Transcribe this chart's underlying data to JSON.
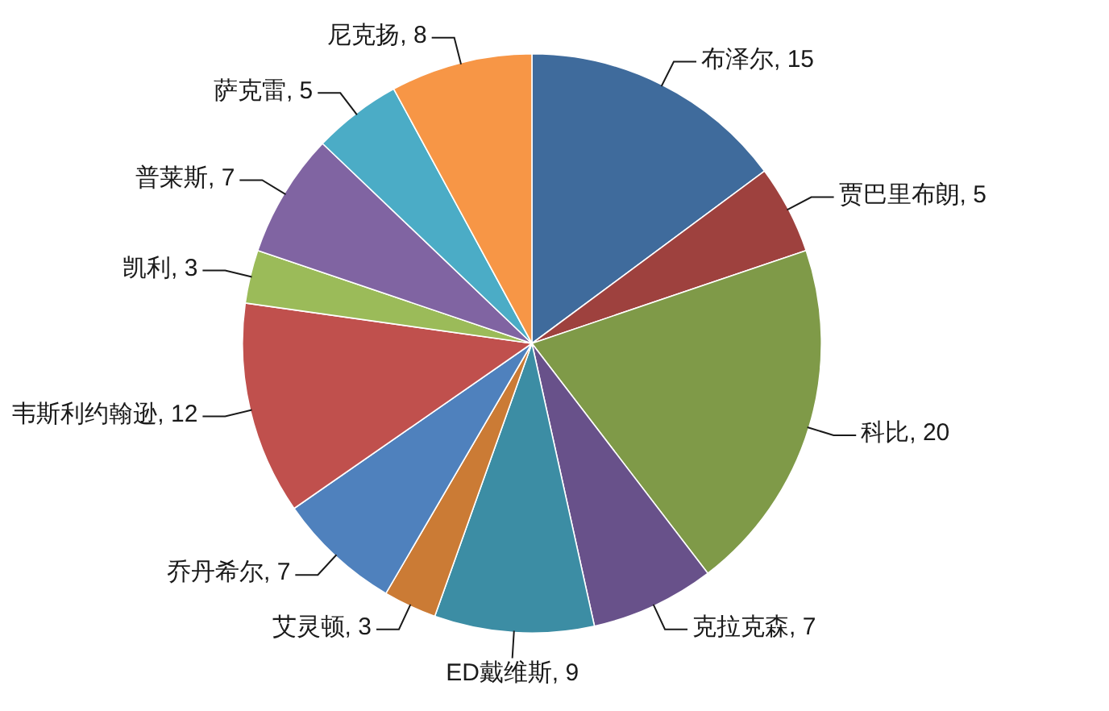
{
  "chart_data": {
    "type": "pie",
    "categories": [
      "布泽尔",
      "贾巴里布朗",
      "科比",
      "克拉克森",
      "ED戴维斯",
      "艾灵顿",
      "乔丹希尔",
      "韦斯利约翰逊",
      "凯利",
      "普莱斯",
      "萨克雷",
      "尼克扬"
    ],
    "values": [
      15,
      5,
      20,
      7,
      9,
      3,
      7,
      12,
      3,
      7,
      5,
      8
    ],
    "value_labels": [
      ", 15",
      ", 5",
      ", 20",
      ", 7",
      ", 9",
      ", 3",
      ", 7",
      ", 12",
      ", 3",
      ", 7",
      ", 5",
      ", 8"
    ],
    "colors": [
      "#3f6b9c",
      "#9e413e",
      "#7f9a48",
      "#68518a",
      "#3c8da4",
      "#cb7b35",
      "#4f81bd",
      "#c0504d",
      "#9bbb59",
      "#8064a2",
      "#4bacc6",
      "#f79646"
    ]
  }
}
